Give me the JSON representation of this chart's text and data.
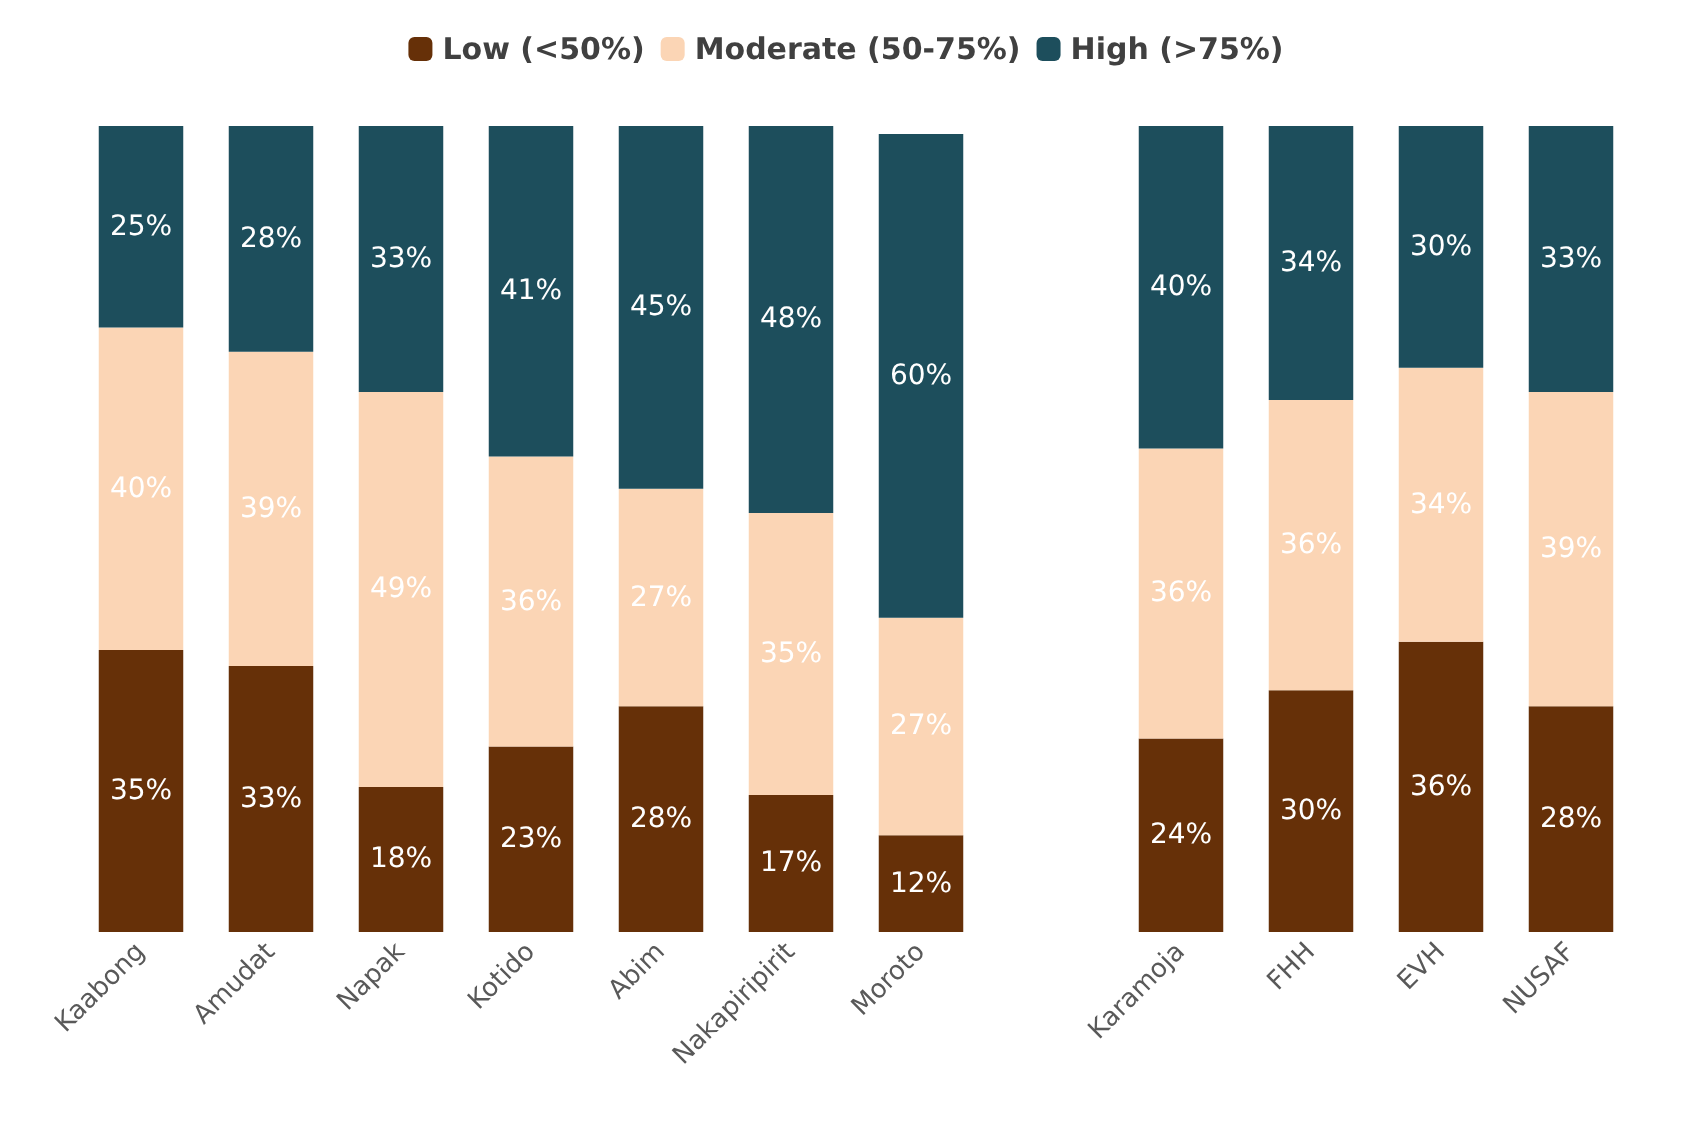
{
  "chart_data": {
    "type": "bar",
    "stacked": true,
    "legend": "top",
    "categories": [
      "Kaabong",
      "Amudat",
      "Napak",
      "Kotido",
      "Abim",
      "Nakapiripirit",
      "Moroto",
      null,
      "Karamoja",
      "FHH",
      "EVH",
      "NUSAF"
    ],
    "series": [
      {
        "name": "Low (<50%)",
        "color": "#663008",
        "values": [
          35,
          33,
          18,
          23,
          28,
          17,
          12,
          null,
          24,
          30,
          36,
          28
        ],
        "value_labels": [
          "35%",
          "33%",
          "18%",
          "23%",
          "28%",
          "17%",
          "12%",
          null,
          "24%",
          "30%",
          "36%",
          "28%"
        ]
      },
      {
        "name": "Moderate (50-75%)",
        "color": "#fbd5b5",
        "values": [
          40,
          39,
          49,
          36,
          27,
          35,
          27,
          null,
          36,
          36,
          34,
          39
        ],
        "value_labels": [
          "40%",
          "39%",
          "49%",
          "36%",
          "27%",
          "35%",
          "27%",
          null,
          "36%",
          "36%",
          "34%",
          "39%"
        ]
      },
      {
        "name": "High (>75%)",
        "color": "#1d4e5c",
        "values": [
          25,
          28,
          33,
          41,
          45,
          48,
          60,
          null,
          40,
          34,
          30,
          33
        ],
        "value_labels": [
          "25%",
          "28%",
          "33%",
          "41%",
          "45%",
          "48%",
          "60%",
          null,
          "40%",
          "34%",
          "30%",
          "33%"
        ]
      }
    ]
  }
}
